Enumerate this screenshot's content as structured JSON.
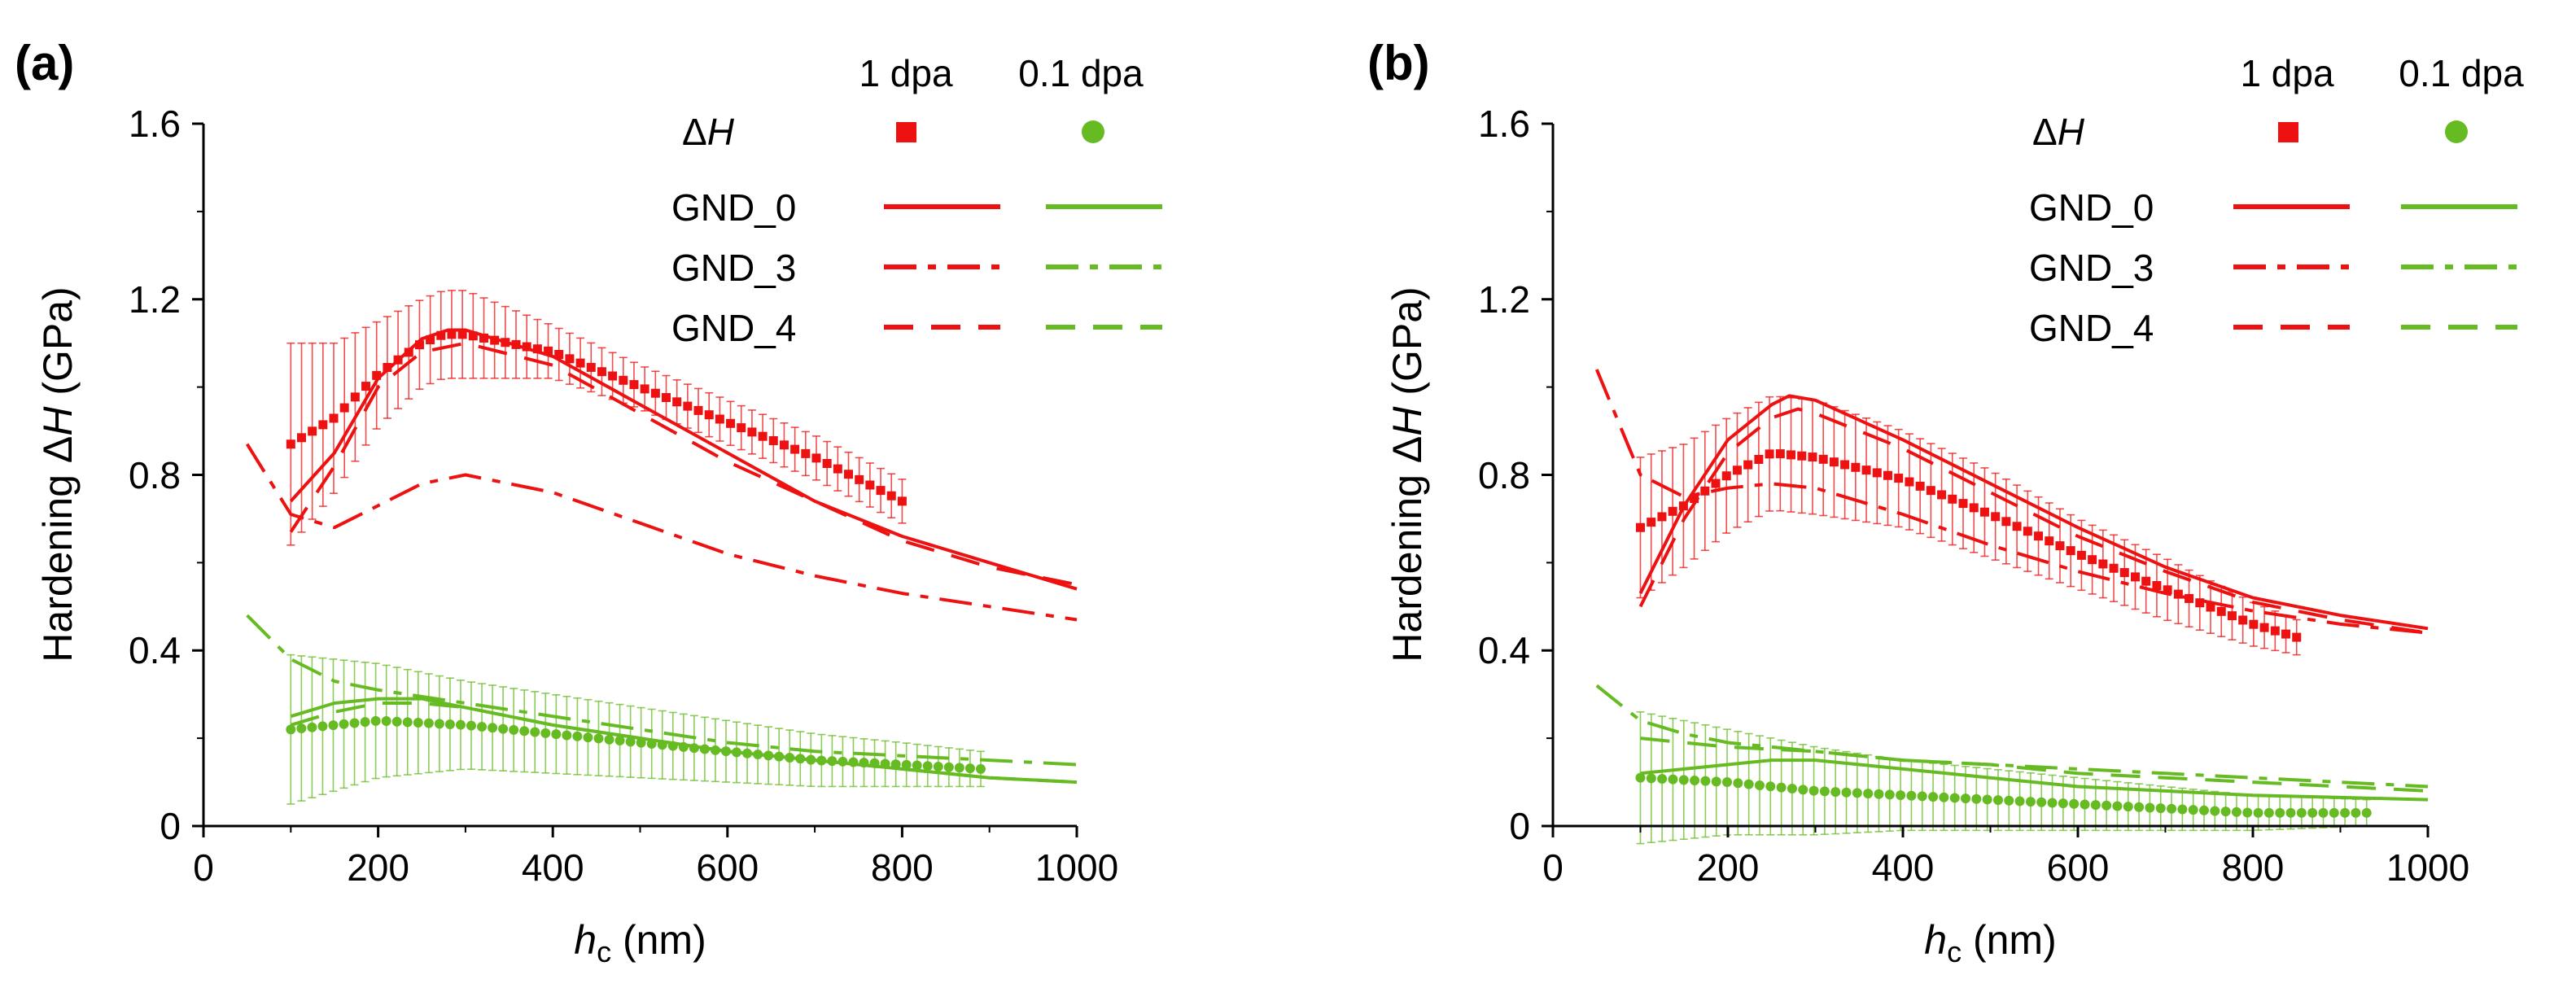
{
  "chart_data": [
    {
      "type": "line",
      "panel_label": "(a)",
      "ylabel_prefix": "Hardening Δ",
      "ylabel_var": "H",
      "ylabel_unit": " (GPa)",
      "xlabel_var": "h",
      "xlabel_sub": "c",
      "xlabel_unit": " (nm)",
      "xlim": [
        0,
        1000
      ],
      "ylim": [
        0,
        1.6
      ],
      "x_ticks": [
        "0",
        "200",
        "400",
        "600",
        "800",
        "1000"
      ],
      "y_ticks": [
        "0",
        "0.4",
        "0.8",
        "1.2",
        "1.6"
      ],
      "legend": {
        "col_headers": [
          "1 dpa",
          "0.1 dpa"
        ],
        "marker_row_prefix": "Δ",
        "marker_row_var": "H",
        "rows": [
          "GND_0",
          "GND_3",
          "GND_4"
        ]
      },
      "colors": {
        "dpa1": "#ee1111",
        "dpa01": "#66bb22"
      },
      "series": [
        {
          "name": "ΔH 1 dpa",
          "kind": "markers",
          "marker": "square",
          "color": "#ee1111",
          "x_start": 100,
          "x_end": 800,
          "count": 58,
          "ctrl_x": [
            100,
            150,
            200,
            250,
            275,
            300,
            400,
            500,
            600,
            700,
            800
          ],
          "ctrl_y": [
            0.87,
            0.93,
            1.03,
            1.1,
            1.12,
            1.12,
            1.08,
            1.0,
            0.92,
            0.84,
            0.74
          ],
          "err": [
            0.23,
            0.17,
            0.12,
            0.1,
            0.1,
            0.1,
            0.06,
            0.05,
            0.05,
            0.05,
            0.05
          ]
        },
        {
          "name": "GND_0 1 dpa",
          "kind": "line",
          "style": "solid",
          "color": "#ee1111",
          "x": [
            100,
            150,
            200,
            250,
            280,
            300,
            400,
            500,
            600,
            700,
            800,
            900,
            1000
          ],
          "y": [
            0.74,
            0.85,
            1.02,
            1.11,
            1.13,
            1.13,
            1.07,
            0.96,
            0.85,
            0.74,
            0.66,
            0.6,
            0.54
          ]
        },
        {
          "name": "GND_3 1 dpa",
          "kind": "line",
          "style": "dashdot",
          "color": "#ee1111",
          "x": [
            50,
            100,
            150,
            200,
            250,
            300,
            400,
            500,
            600,
            700,
            800,
            900,
            1000
          ],
          "y": [
            0.87,
            0.71,
            0.68,
            0.73,
            0.78,
            0.8,
            0.76,
            0.69,
            0.62,
            0.57,
            0.53,
            0.5,
            0.47
          ]
        },
        {
          "name": "GND_4 1 dpa",
          "kind": "line",
          "style": "dashed",
          "color": "#ee1111",
          "x": [
            100,
            150,
            200,
            250,
            300,
            400,
            500,
            600,
            700,
            800,
            900,
            1000
          ],
          "y": [
            0.67,
            0.82,
            1.0,
            1.08,
            1.1,
            1.05,
            0.94,
            0.83,
            0.74,
            0.65,
            0.59,
            0.55
          ]
        },
        {
          "name": "ΔH 0.1 dpa",
          "kind": "markers",
          "marker": "circle",
          "color": "#66bb22",
          "x_start": 100,
          "x_end": 890,
          "count": 66,
          "ctrl_x": [
            100,
            200,
            300,
            400,
            500,
            600,
            700,
            800,
            890
          ],
          "ctrl_y": [
            0.22,
            0.24,
            0.23,
            0.21,
            0.19,
            0.17,
            0.15,
            0.14,
            0.13
          ],
          "err": [
            0.17,
            0.13,
            0.1,
            0.09,
            0.08,
            0.07,
            0.06,
            0.05,
            0.04
          ]
        },
        {
          "name": "GND_0 0.1 dpa",
          "kind": "line",
          "style": "solid",
          "color": "#66bb22",
          "x": [
            100,
            150,
            200,
            250,
            300,
            400,
            500,
            600,
            700,
            800,
            900,
            1000
          ],
          "y": [
            0.25,
            0.28,
            0.29,
            0.29,
            0.27,
            0.23,
            0.2,
            0.17,
            0.15,
            0.13,
            0.11,
            0.1
          ]
        },
        {
          "name": "GND_3 0.1 dpa",
          "kind": "line",
          "style": "dashdot",
          "color": "#66bb22",
          "x": [
            50,
            100,
            150,
            200,
            300,
            400,
            500,
            600,
            700,
            800,
            900,
            1000
          ],
          "y": [
            0.48,
            0.38,
            0.33,
            0.31,
            0.28,
            0.25,
            0.22,
            0.19,
            0.17,
            0.16,
            0.15,
            0.14
          ]
        },
        {
          "name": "GND_4 0.1 dpa",
          "kind": "line",
          "style": "dashed",
          "color": "#66bb22",
          "x": [
            100,
            150,
            200,
            250,
            300,
            400,
            500,
            600,
            700,
            800,
            900,
            1000
          ],
          "y": [
            0.23,
            0.26,
            0.28,
            0.28,
            0.27,
            0.23,
            0.2,
            0.17,
            0.15,
            0.13,
            0.11,
            0.1
          ]
        }
      ]
    },
    {
      "type": "line",
      "panel_label": "(b)",
      "ylabel_prefix": "Hardening Δ",
      "ylabel_var": "H",
      "ylabel_unit": " (GPa)",
      "xlabel_var": "h",
      "xlabel_sub": "c",
      "xlabel_unit": " (nm)",
      "xlim": [
        0,
        1000
      ],
      "ylim": [
        0,
        1.6
      ],
      "x_ticks": [
        "0",
        "200",
        "400",
        "600",
        "800",
        "1000"
      ],
      "y_ticks": [
        "0",
        "0.4",
        "0.8",
        "1.2",
        "1.6"
      ],
      "legend": {
        "col_headers": [
          "1 dpa",
          "0.1 dpa"
        ],
        "marker_row_prefix": "Δ",
        "marker_row_var": "H",
        "rows": [
          "GND_0",
          "GND_3",
          "GND_4"
        ]
      },
      "colors": {
        "dpa1": "#ee1111",
        "dpa01": "#66bb22"
      },
      "series": [
        {
          "name": "ΔH 1 dpa",
          "kind": "markers",
          "marker": "square",
          "color": "#ee1111",
          "x_start": 100,
          "x_end": 850,
          "count": 62,
          "ctrl_x": [
            100,
            150,
            200,
            250,
            300,
            400,
            500,
            600,
            700,
            800,
            850
          ],
          "ctrl_y": [
            0.68,
            0.73,
            0.8,
            0.85,
            0.84,
            0.79,
            0.71,
            0.62,
            0.54,
            0.46,
            0.43
          ],
          "err": [
            0.16,
            0.14,
            0.13,
            0.13,
            0.13,
            0.11,
            0.1,
            0.08,
            0.07,
            0.05,
            0.04
          ]
        },
        {
          "name": "GND_0 1 dpa",
          "kind": "line",
          "style": "solid",
          "color": "#ee1111",
          "x": [
            100,
            150,
            200,
            250,
            270,
            300,
            400,
            500,
            600,
            700,
            800,
            900,
            1000
          ],
          "y": [
            0.53,
            0.73,
            0.88,
            0.96,
            0.98,
            0.97,
            0.88,
            0.78,
            0.68,
            0.59,
            0.52,
            0.48,
            0.45
          ]
        },
        {
          "name": "GND_3 1 dpa",
          "kind": "line",
          "style": "dashdot",
          "color": "#ee1111",
          "x": [
            50,
            75,
            100,
            150,
            200,
            250,
            300,
            400,
            500,
            600,
            700,
            800,
            900,
            1000
          ],
          "y": [
            1.04,
            0.92,
            0.8,
            0.75,
            0.77,
            0.78,
            0.77,
            0.71,
            0.64,
            0.58,
            0.53,
            0.49,
            0.46,
            0.44
          ]
        },
        {
          "name": "GND_4 1 dpa",
          "kind": "line",
          "style": "dashed",
          "color": "#ee1111",
          "x": [
            100,
            150,
            200,
            250,
            280,
            300,
            400,
            500,
            600,
            700,
            800,
            900,
            1000
          ],
          "y": [
            0.5,
            0.7,
            0.85,
            0.93,
            0.95,
            0.94,
            0.86,
            0.76,
            0.66,
            0.58,
            0.51,
            0.47,
            0.44
          ]
        },
        {
          "name": "ΔH 0.1 dpa",
          "kind": "markers",
          "marker": "circle",
          "color": "#66bb22",
          "x_start": 100,
          "x_end": 930,
          "count": 68,
          "ctrl_x": [
            100,
            200,
            300,
            400,
            500,
            600,
            700,
            800,
            930
          ],
          "ctrl_y": [
            0.11,
            0.1,
            0.08,
            0.07,
            0.06,
            0.05,
            0.04,
            0.03,
            0.03
          ],
          "err": [
            0.15,
            0.12,
            0.1,
            0.08,
            0.07,
            0.06,
            0.05,
            0.04,
            0.03
          ]
        },
        {
          "name": "GND_0 0.1 dpa",
          "kind": "line",
          "style": "solid",
          "color": "#66bb22",
          "x": [
            100,
            150,
            200,
            250,
            300,
            400,
            500,
            600,
            700,
            800,
            900,
            1000
          ],
          "y": [
            0.12,
            0.13,
            0.14,
            0.15,
            0.15,
            0.13,
            0.11,
            0.09,
            0.08,
            0.07,
            0.065,
            0.06
          ]
        },
        {
          "name": "GND_3 0.1 dpa",
          "kind": "line",
          "style": "dashdot",
          "color": "#66bb22",
          "x": [
            50,
            100,
            150,
            200,
            300,
            400,
            500,
            600,
            700,
            800,
            900,
            1000
          ],
          "y": [
            0.32,
            0.24,
            0.21,
            0.19,
            0.17,
            0.15,
            0.14,
            0.13,
            0.12,
            0.11,
            0.1,
            0.09
          ]
        },
        {
          "name": "GND_4 0.1 dpa",
          "kind": "line",
          "style": "dashed",
          "color": "#66bb22",
          "x": [
            100,
            200,
            300,
            400,
            500,
            600,
            700,
            800,
            900,
            1000
          ],
          "y": [
            0.2,
            0.18,
            0.17,
            0.15,
            0.14,
            0.12,
            0.11,
            0.1,
            0.09,
            0.08
          ]
        }
      ]
    }
  ]
}
